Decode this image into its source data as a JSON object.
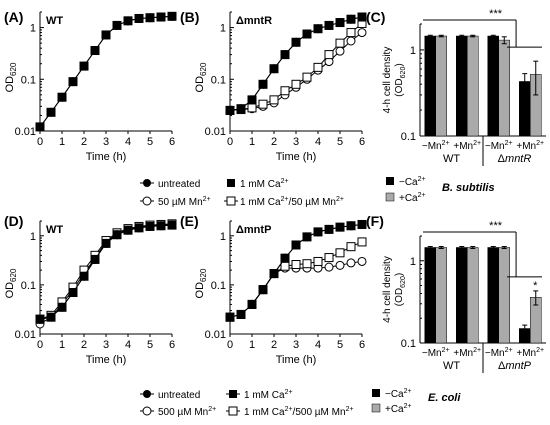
{
  "figure": {
    "panel_labels": [
      "(A)",
      "(B)",
      "(C)",
      "(D)",
      "(E)",
      "(F)"
    ],
    "time_label": "Time (h)",
    "od_label_main": "OD",
    "od_label_sub": "620",
    "density_label_main": "4-h cell density",
    "density_label_sub": "(OD",
    "density_label_sub_n": "620",
    "density_label_close": ")",
    "significance": "***",
    "single_star": "*"
  },
  "colors": {
    "black": "#000000",
    "gray": "#aaaaaa",
    "white": "#ffffff"
  },
  "chart_data": [
    {
      "id": "A",
      "type": "line",
      "title": "WT",
      "ylog": true,
      "ylim": [
        0.01,
        2
      ],
      "xlim": [
        0,
        6
      ],
      "xticks": [
        "0",
        "1",
        "2",
        "3",
        "4",
        "5",
        "6"
      ],
      "yticks": [
        "1",
        "0.1",
        "0.01"
      ],
      "series": [
        {
          "name": "untreated",
          "marker": "filled-circle",
          "x": [
            0,
            0.5,
            1,
            1.5,
            2,
            2.5,
            3,
            3.5,
            4,
            4.5,
            5,
            5.5,
            6
          ],
          "y": [
            0.012,
            0.023,
            0.045,
            0.09,
            0.18,
            0.36,
            0.72,
            1.1,
            1.35,
            1.5,
            1.55,
            1.6,
            1.65
          ]
        },
        {
          "name": "1 mM Ca2+",
          "marker": "filled-square",
          "x": [
            0,
            0.5,
            1,
            1.5,
            2,
            2.5,
            3,
            3.5,
            4,
            4.5,
            5,
            5.5,
            6
          ],
          "y": [
            0.012,
            0.023,
            0.045,
            0.09,
            0.18,
            0.36,
            0.72,
            1.1,
            1.35,
            1.5,
            1.55,
            1.6,
            1.65
          ]
        }
      ]
    },
    {
      "id": "B",
      "type": "line",
      "title": "ΔmntR",
      "ylog": true,
      "ylim": [
        0.01,
        2
      ],
      "xlim": [
        0,
        6
      ],
      "xticks": [
        "0",
        "1",
        "2",
        "3",
        "4",
        "5",
        "6"
      ],
      "yticks": [
        "1",
        "0.1",
        "0.01"
      ],
      "series": [
        {
          "name": "untreated",
          "marker": "filled-circle",
          "x": [
            0,
            0.5,
            1,
            1.5,
            2,
            2.5,
            3,
            3.5,
            4,
            4.5,
            5,
            5.5,
            6
          ],
          "y": [
            0.025,
            0.027,
            0.04,
            0.08,
            0.16,
            0.3,
            0.52,
            0.75,
            0.95,
            1.1,
            1.25,
            1.45,
            1.6
          ]
        },
        {
          "name": "1 mM Ca2+",
          "marker": "filled-square",
          "x": [
            0,
            0.5,
            1,
            1.5,
            2,
            2.5,
            3,
            3.5,
            4,
            4.5,
            5,
            5.5,
            6
          ],
          "y": [
            0.025,
            0.027,
            0.04,
            0.08,
            0.16,
            0.3,
            0.52,
            0.75,
            0.95,
            1.1,
            1.25,
            1.45,
            1.6
          ]
        },
        {
          "name": "50 µM Mn2+",
          "marker": "open-circle",
          "x": [
            0,
            0.5,
            1,
            1.5,
            2,
            2.5,
            3,
            3.5,
            4,
            4.5,
            5,
            5.5,
            6
          ],
          "y": [
            0.025,
            0.026,
            0.027,
            0.03,
            0.035,
            0.05,
            0.07,
            0.1,
            0.15,
            0.22,
            0.35,
            0.55,
            0.8
          ]
        },
        {
          "name": "1 mM Ca2+/50 µM Mn2+",
          "marker": "open-square",
          "x": [
            0,
            0.5,
            1,
            1.5,
            2,
            2.5,
            3,
            3.5,
            4,
            4.5,
            5,
            5.5,
            6
          ],
          "y": [
            0.025,
            0.026,
            0.028,
            0.033,
            0.04,
            0.06,
            0.08,
            0.11,
            0.17,
            0.3,
            0.5,
            0.8,
            1.2
          ]
        }
      ]
    },
    {
      "id": "C",
      "type": "bar",
      "ylog": true,
      "ylim": [
        0.1,
        2
      ],
      "ylabel": "4-h cell density (OD620)",
      "yticks": [
        "1",
        "0.1"
      ],
      "categories": [
        "−Mn2+",
        "+Mn2+",
        "−Mn2+",
        "+Mn2+"
      ],
      "groups": [
        "WT",
        "ΔmntR"
      ],
      "series": [
        {
          "name": "−Ca2+",
          "values": [
            1.45,
            1.45,
            1.45,
            0.43
          ],
          "errors": [
            0.03,
            0.03,
            0.03,
            0.1
          ]
        },
        {
          "name": "+Ca2+",
          "values": [
            1.45,
            1.45,
            1.3,
            0.52
          ],
          "errors": [
            0.03,
            0.03,
            0.12,
            0.22
          ]
        }
      ],
      "organism": "B. subtilis"
    },
    {
      "id": "D",
      "type": "line",
      "title": "WT",
      "ylog": true,
      "ylim": [
        0.01,
        2
      ],
      "xlim": [
        0,
        6
      ],
      "xticks": [
        "0",
        "1",
        "2",
        "3",
        "4",
        "5",
        "6"
      ],
      "yticks": [
        "1",
        "0.1",
        "0.01"
      ],
      "series": [
        {
          "name": "untreated",
          "marker": "filled-circle",
          "x": [
            0,
            0.5,
            1,
            1.5,
            2,
            2.5,
            3,
            3.5,
            4,
            4.5,
            5,
            5.5,
            6
          ],
          "y": [
            0.02,
            0.022,
            0.035,
            0.07,
            0.15,
            0.33,
            0.7,
            1.05,
            1.3,
            1.45,
            1.55,
            1.6,
            1.65
          ]
        },
        {
          "name": "1 mM Ca2+",
          "marker": "filled-square",
          "x": [
            0,
            0.5,
            1,
            1.5,
            2,
            2.5,
            3,
            3.5,
            4,
            4.5,
            5,
            5.5,
            6
          ],
          "y": [
            0.02,
            0.022,
            0.035,
            0.07,
            0.15,
            0.33,
            0.7,
            1.05,
            1.3,
            1.45,
            1.55,
            1.6,
            1.65
          ]
        },
        {
          "name": "500 µM Mn2+",
          "marker": "open-circle",
          "x": [
            0,
            0.5,
            1,
            1.5,
            2,
            2.5,
            3,
            3.5,
            4,
            4.5,
            5,
            5.5,
            6
          ],
          "y": [
            0.016,
            0.022,
            0.04,
            0.08,
            0.17,
            0.35,
            0.75,
            1.1,
            1.35,
            1.5,
            1.6,
            1.65,
            1.7
          ]
        },
        {
          "name": "1 mM Ca2+/500 µM Mn2+",
          "marker": "open-square",
          "x": [
            0,
            0.5,
            1,
            1.5,
            2,
            2.5,
            3,
            3.5,
            4,
            4.5,
            5,
            5.5,
            6
          ],
          "y": [
            0.02,
            0.024,
            0.045,
            0.09,
            0.2,
            0.4,
            0.8,
            1.15,
            1.4,
            1.55,
            1.65,
            1.7,
            1.75
          ]
        }
      ]
    },
    {
      "id": "E",
      "type": "line",
      "title": "ΔmntP",
      "ylog": true,
      "ylim": [
        0.01,
        2
      ],
      "xlim": [
        0,
        6
      ],
      "xticks": [
        "0",
        "1",
        "2",
        "3",
        "4",
        "5",
        "6"
      ],
      "yticks": [
        "1",
        "0.1",
        "0.01"
      ],
      "series": [
        {
          "name": "untreated",
          "marker": "filled-circle",
          "x": [
            0,
            0.5,
            1,
            1.5,
            2,
            2.5,
            3,
            3.5,
            4,
            4.5,
            5,
            5.5,
            6
          ],
          "y": [
            0.022,
            0.025,
            0.04,
            0.08,
            0.17,
            0.35,
            0.65,
            0.95,
            1.2,
            1.35,
            1.5,
            1.6,
            1.7
          ]
        },
        {
          "name": "1 mM Ca2+",
          "marker": "filled-square",
          "x": [
            0,
            0.5,
            1,
            1.5,
            2,
            2.5,
            3,
            3.5,
            4,
            4.5,
            5,
            5.5,
            6
          ],
          "y": [
            0.022,
            0.025,
            0.04,
            0.08,
            0.17,
            0.35,
            0.65,
            0.95,
            1.2,
            1.35,
            1.5,
            1.6,
            1.7
          ]
        },
        {
          "name": "500 µM Mn2+",
          "marker": "open-circle",
          "x": [
            0,
            0.5,
            1,
            1.5,
            2,
            2.5,
            3,
            3.5,
            4,
            4.5,
            5,
            5.5,
            6
          ],
          "y": [
            0.022,
            0.025,
            0.04,
            0.08,
            0.17,
            0.22,
            0.22,
            0.22,
            0.22,
            0.23,
            0.25,
            0.28,
            0.3
          ]
        },
        {
          "name": "1 mM Ca2+/500 µM Mn2+",
          "marker": "open-square",
          "x": [
            0,
            0.5,
            1,
            1.5,
            2,
            2.5,
            3,
            3.5,
            4,
            4.5,
            5,
            5.5,
            6
          ],
          "y": [
            0.022,
            0.025,
            0.04,
            0.08,
            0.17,
            0.24,
            0.26,
            0.27,
            0.3,
            0.36,
            0.45,
            0.6,
            0.75
          ]
        }
      ]
    },
    {
      "id": "F",
      "type": "bar",
      "ylog": true,
      "ylim": [
        0.1,
        2
      ],
      "ylabel": "4-h cell density (OD620)",
      "yticks": [
        "1",
        "0.1"
      ],
      "categories": [
        "−Mn2+",
        "+Mn2+",
        "−Mn2+",
        "+Mn2+"
      ],
      "groups": [
        "WT",
        "ΔmntP"
      ],
      "series": [
        {
          "name": "−Ca2+",
          "values": [
            1.45,
            1.45,
            1.45,
            0.15
          ],
          "errors": [
            0.04,
            0.04,
            0.04,
            0.015
          ]
        },
        {
          "name": "+Ca2+",
          "values": [
            1.45,
            1.45,
            1.45,
            0.36
          ],
          "errors": [
            0.04,
            0.04,
            0.04,
            0.07
          ]
        }
      ],
      "organism": "E. coli"
    }
  ],
  "legend_top": {
    "untreated": "untreated",
    "ca": "1 mM Ca",
    "mn": "50 µM Mn",
    "camn1": "1 mM Ca",
    "camn2": "/50 µM Mn",
    "sup": "2+"
  },
  "legend_bottom": {
    "untreated": "untreated",
    "ca": "1 mM Ca",
    "mn": "500 µM Mn",
    "camn1": "1 mM Ca",
    "camn2": "/500 µM Mn",
    "sup": "2+"
  },
  "bar_labels": {
    "minus_mn": "−Mn",
    "plus_mn": "+Mn",
    "sup": "2+",
    "wt": "WT",
    "delta": "Δ",
    "mntR": "mntR",
    "mntP": "mntP",
    "minus_ca": "−Ca",
    "plus_ca": "+Ca",
    "bsub": "B. subtilis",
    "ecoli": "E. coli"
  }
}
